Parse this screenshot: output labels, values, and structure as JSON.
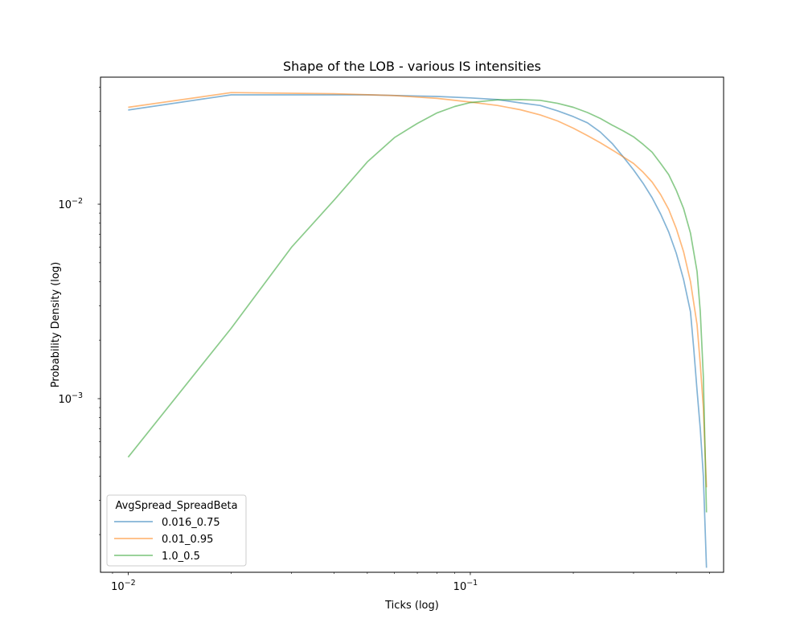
{
  "chart_data": {
    "type": "line",
    "title": "Shape of the LOB - various IS intensities",
    "xlabel": "Ticks (log)",
    "ylabel": "Probability Density (log)",
    "xscale": "log",
    "yscale": "log",
    "xlim": [
      0.0083,
      0.55
    ],
    "ylim": [
      0.000128,
      0.045
    ],
    "grid": false,
    "x_ticks": [
      {
        "value": 0.01,
        "base": "10",
        "exp": "−2"
      },
      {
        "value": 0.1,
        "base": "10",
        "exp": "−1"
      }
    ],
    "y_ticks": [
      {
        "value": 0.001,
        "base": "10",
        "exp": "−3"
      },
      {
        "value": 0.01,
        "base": "10",
        "exp": "−2"
      }
    ],
    "legend": {
      "title": "AvgSpread_SpreadBeta",
      "placement": "lower-left"
    },
    "series": [
      {
        "name": "0.016_0.75",
        "color": "#1f77b4",
        "points": [
          [
            0.01,
            0.0305
          ],
          [
            0.02,
            0.0365
          ],
          [
            0.05,
            0.0365
          ],
          [
            0.08,
            0.0358
          ],
          [
            0.1,
            0.0352
          ],
          [
            0.12,
            0.0345
          ],
          [
            0.14,
            0.0332
          ],
          [
            0.16,
            0.0322
          ],
          [
            0.18,
            0.0302
          ],
          [
            0.2,
            0.0282
          ],
          [
            0.22,
            0.0262
          ],
          [
            0.24,
            0.0235
          ],
          [
            0.26,
            0.0205
          ],
          [
            0.28,
            0.0175
          ],
          [
            0.3,
            0.015
          ],
          [
            0.32,
            0.0128
          ],
          [
            0.34,
            0.0108
          ],
          [
            0.36,
            0.0089
          ],
          [
            0.38,
            0.0072
          ],
          [
            0.4,
            0.0056
          ],
          [
            0.42,
            0.0041
          ],
          [
            0.44,
            0.0028
          ],
          [
            0.45,
            0.0018
          ],
          [
            0.46,
            0.0011
          ],
          [
            0.47,
            0.0007
          ],
          [
            0.48,
            0.0004
          ],
          [
            0.49,
            0.000135
          ]
        ]
      },
      {
        "name": "0.01_0.95",
        "color": "#ff7f0e",
        "points": [
          [
            0.01,
            0.0315
          ],
          [
            0.02,
            0.0375
          ],
          [
            0.04,
            0.037
          ],
          [
            0.06,
            0.0362
          ],
          [
            0.08,
            0.035
          ],
          [
            0.1,
            0.0335
          ],
          [
            0.12,
            0.0322
          ],
          [
            0.14,
            0.0306
          ],
          [
            0.16,
            0.0288
          ],
          [
            0.18,
            0.0268
          ],
          [
            0.2,
            0.0246
          ],
          [
            0.22,
            0.0225
          ],
          [
            0.24,
            0.0207
          ],
          [
            0.26,
            0.019
          ],
          [
            0.28,
            0.0175
          ],
          [
            0.3,
            0.0162
          ],
          [
            0.32,
            0.0146
          ],
          [
            0.34,
            0.013
          ],
          [
            0.36,
            0.0112
          ],
          [
            0.38,
            0.0094
          ],
          [
            0.4,
            0.0075
          ],
          [
            0.42,
            0.0057
          ],
          [
            0.44,
            0.004
          ],
          [
            0.46,
            0.0024
          ],
          [
            0.47,
            0.0015
          ],
          [
            0.48,
            0.0009
          ],
          [
            0.49,
            0.00035
          ]
        ]
      },
      {
        "name": "1.0_0.5",
        "color": "#2ca02c",
        "points": [
          [
            0.01,
            0.0005
          ],
          [
            0.02,
            0.0023
          ],
          [
            0.03,
            0.006
          ],
          [
            0.04,
            0.0105
          ],
          [
            0.05,
            0.0165
          ],
          [
            0.06,
            0.022
          ],
          [
            0.07,
            0.026
          ],
          [
            0.08,
            0.0295
          ],
          [
            0.09,
            0.0318
          ],
          [
            0.1,
            0.0333
          ],
          [
            0.12,
            0.0344
          ],
          [
            0.14,
            0.0345
          ],
          [
            0.16,
            0.0342
          ],
          [
            0.18,
            0.033
          ],
          [
            0.2,
            0.0315
          ],
          [
            0.22,
            0.0296
          ],
          [
            0.24,
            0.0276
          ],
          [
            0.26,
            0.0255
          ],
          [
            0.28,
            0.0238
          ],
          [
            0.3,
            0.0222
          ],
          [
            0.32,
            0.0203
          ],
          [
            0.34,
            0.0185
          ],
          [
            0.36,
            0.0162
          ],
          [
            0.38,
            0.0142
          ],
          [
            0.4,
            0.0118
          ],
          [
            0.42,
            0.0095
          ],
          [
            0.44,
            0.0071
          ],
          [
            0.46,
            0.0045
          ],
          [
            0.47,
            0.0028
          ],
          [
            0.48,
            0.0013
          ],
          [
            0.49,
            0.00026
          ]
        ]
      }
    ]
  }
}
